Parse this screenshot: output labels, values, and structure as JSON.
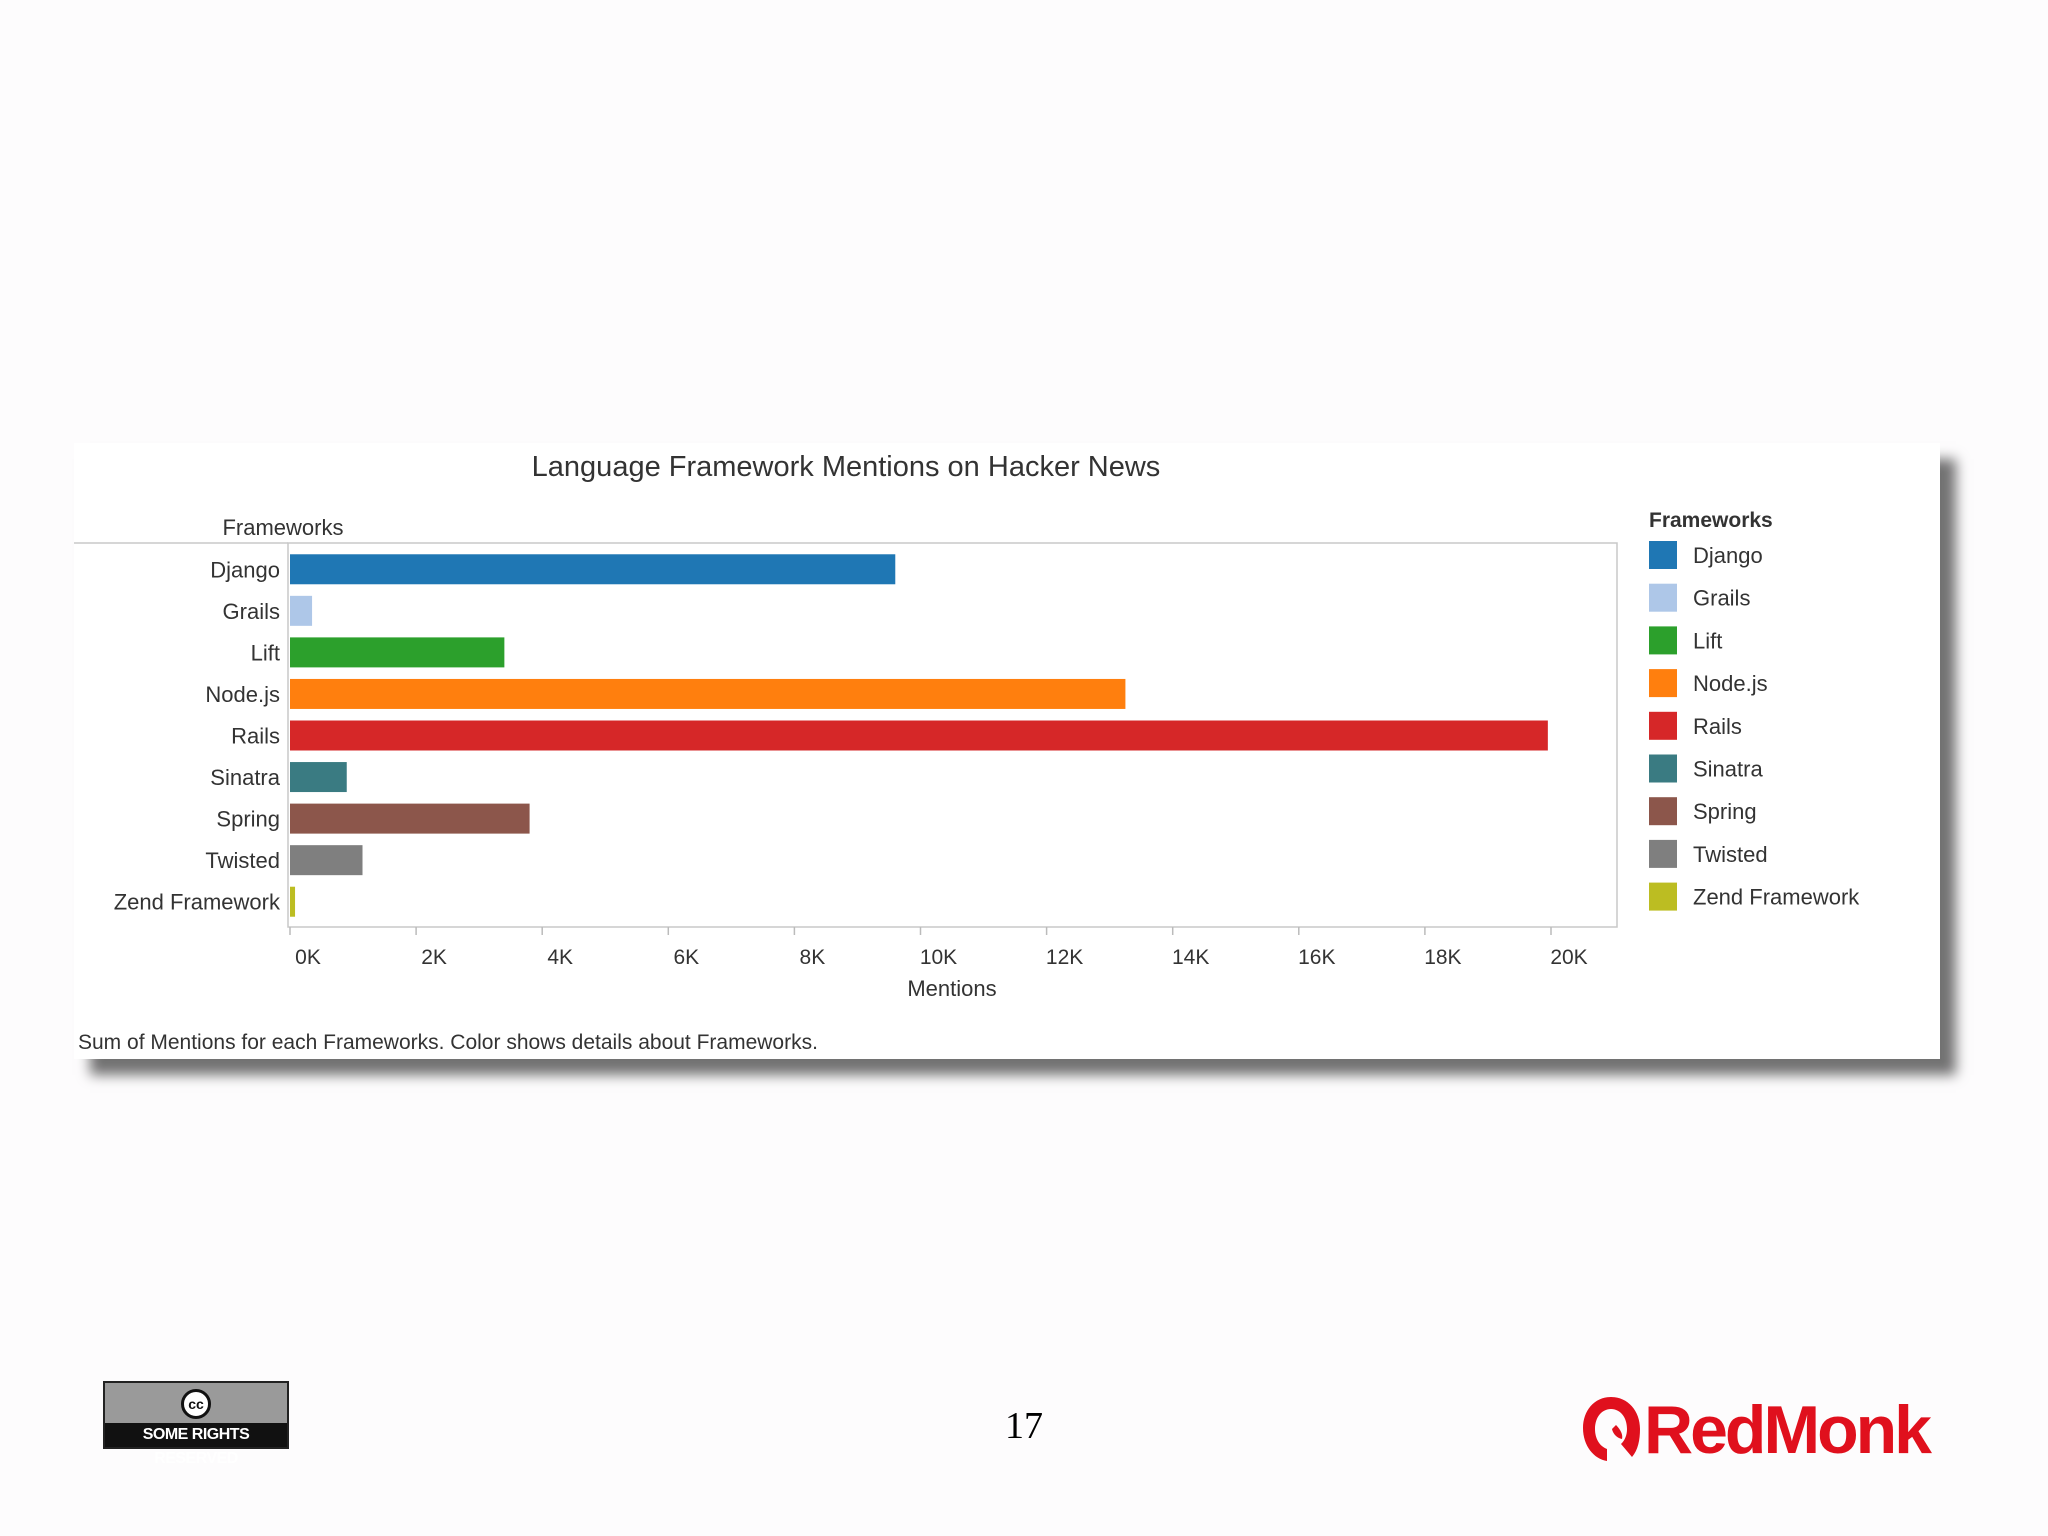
{
  "slide": {
    "page_number": "17",
    "cc_badge": {
      "circle_text": "cc",
      "strip_text": "SOME RIGHTS RESERVED"
    },
    "logo_text": "RedMonk"
  },
  "chart_data": {
    "type": "bar",
    "orientation": "horizontal",
    "title": "Language Framework Mentions on Hacker News",
    "category_header": "Frameworks",
    "xlabel": "Mentions",
    "footnote": "Sum of Mentions for each Frameworks.  Color shows details about Frameworks.",
    "xlim": [
      0,
      21000
    ],
    "ticks": [
      0,
      2000,
      4000,
      6000,
      8000,
      10000,
      12000,
      14000,
      16000,
      18000,
      20000
    ],
    "tick_labels": [
      "0K",
      "2K",
      "4K",
      "6K",
      "8K",
      "10K",
      "12K",
      "14K",
      "16K",
      "18K",
      "20K"
    ],
    "categories": [
      "Django",
      "Grails",
      "Lift",
      "Node.js",
      "Rails",
      "Sinatra",
      "Spring",
      "Twisted",
      "Zend Framework"
    ],
    "values": [
      9600,
      350,
      3400,
      13250,
      19950,
      900,
      3800,
      1150,
      80
    ],
    "colors": [
      "#1f77b4",
      "#aec7e8",
      "#2ca02c",
      "#ff7f0e",
      "#d62728",
      "#3a7b82",
      "#8c564b",
      "#7f7f7f",
      "#bcbd22"
    ],
    "legend": {
      "title": "Frameworks",
      "position": "right",
      "items": [
        "Django",
        "Grails",
        "Lift",
        "Node.js",
        "Rails",
        "Sinatra",
        "Spring",
        "Twisted",
        "Zend Framework"
      ]
    },
    "grid": false
  }
}
